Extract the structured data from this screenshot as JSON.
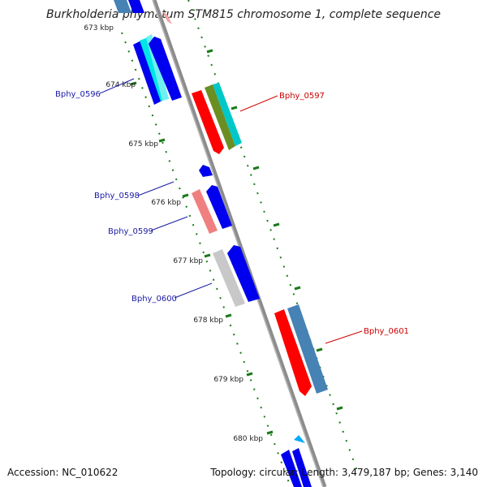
{
  "title": "Burkholderia phymatum STM815 chromosome 1, complete sequence",
  "accession": "Accession: NC_010622",
  "topology": "Topology: circular; Length: 3,479,187 bp; Genes: 3,140",
  "ticks": [
    "673 kbp",
    "674 kbp",
    "675 kbp",
    "676 kbp",
    "677 kbp",
    "678 kbp",
    "679 kbp",
    "680 kbp"
  ],
  "genes": [
    {
      "label": "Bphy_0596",
      "strand": "reverse"
    },
    {
      "label": "Bphy_0597",
      "strand": "forward"
    },
    {
      "label": "Bphy_0598",
      "strand": "reverse"
    },
    {
      "label": "Bphy_0599",
      "strand": "reverse"
    },
    {
      "label": "Bphy_0600",
      "strand": "reverse"
    },
    {
      "label": "Bphy_0601",
      "strand": "forward"
    }
  ],
  "colors": {
    "backbone": "#8c8c8c",
    "tick_green": "#1a7a1a",
    "gene_red": "#ff0000",
    "gene_blue": "#0000ee",
    "gene_cyan": "#00dddd",
    "gene_olive": "#6b8e23",
    "gene_steel": "#4682b4",
    "gene_pink": "#f08080",
    "gene_gray": "#c0c0c0",
    "label_blue": "#1a1aa6",
    "label_red": "#cc0000"
  }
}
